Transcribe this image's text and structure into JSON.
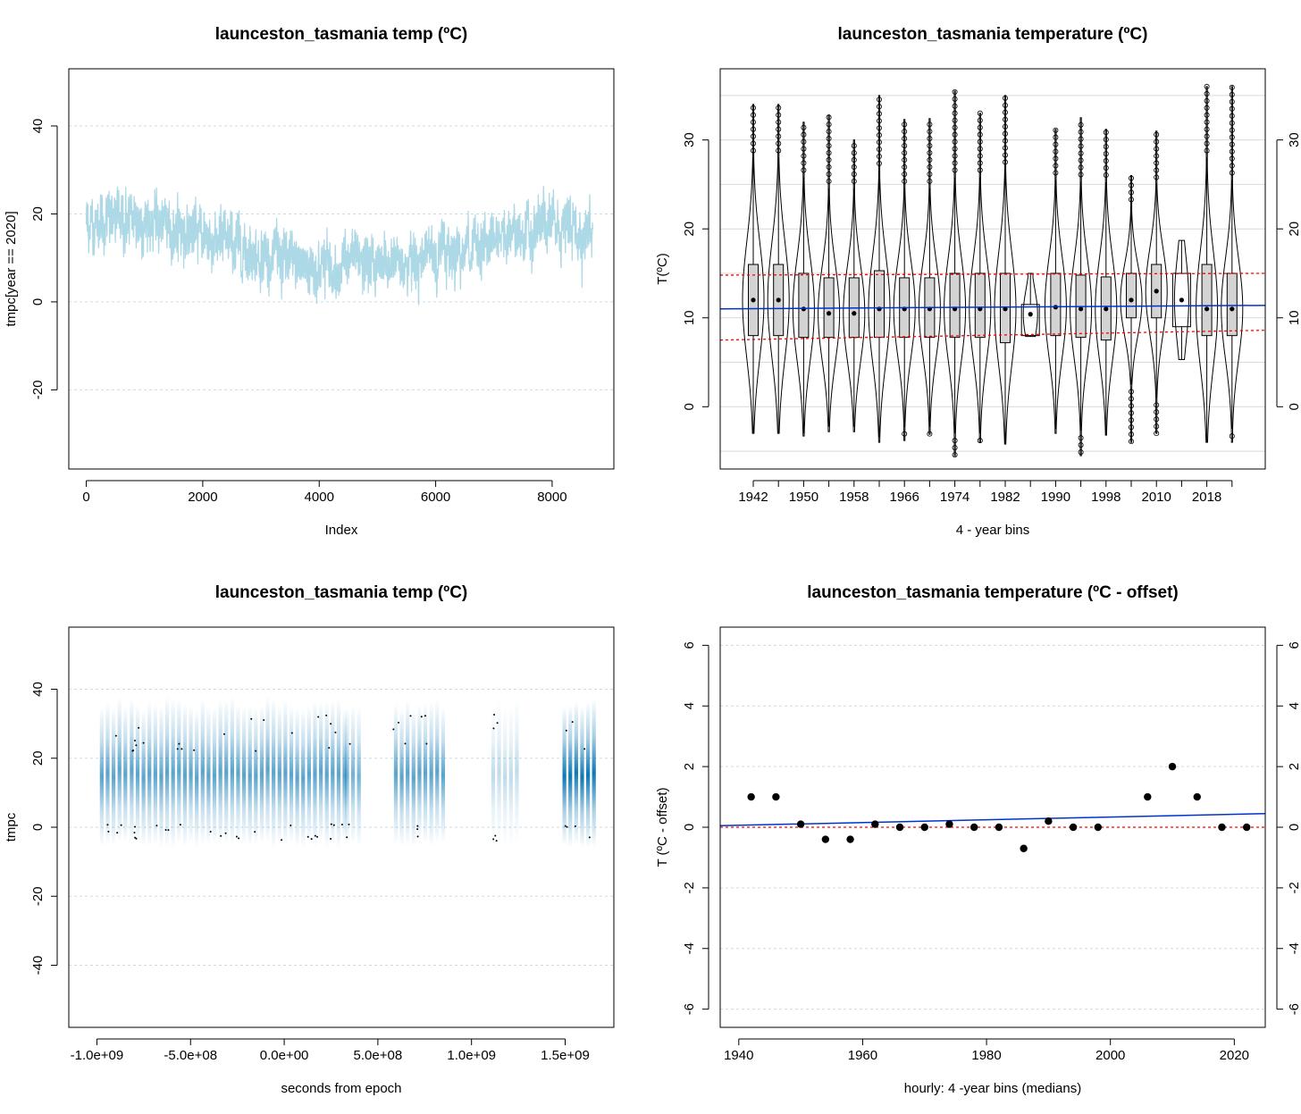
{
  "chart_data": [
    {
      "id": "p1",
      "type": "line",
      "title": "launceston_tasmania temp (ºC)",
      "xlabel": "Index",
      "ylabel": "tmpc[year == 2020]",
      "xlim": [
        -300,
        9060
      ],
      "ylim": [
        -38,
        53
      ],
      "x_ticks": [
        0,
        2000,
        4000,
        6000,
        8000
      ],
      "x_tick_labels": [
        "0",
        "2000",
        "4000",
        "6000",
        "8000"
      ],
      "y_ticks": [
        -20,
        0,
        20,
        40
      ],
      "y_tick_labels": [
        "-20",
        "0",
        "20",
        "40"
      ],
      "grid_y": [
        -20,
        0,
        20,
        40
      ],
      "color": "#add8e6",
      "n_points": 8700,
      "seasonal_profile": {
        "x": [
          0,
          1000,
          2000,
          3000,
          3800,
          4500,
          5200,
          6000,
          7000,
          8000,
          8700
        ],
        "mean": [
          18,
          18.5,
          15,
          11,
          8,
          8.5,
          8,
          11,
          14,
          17,
          16
        ]
      }
    },
    {
      "id": "p2",
      "type": "violin+box",
      "title": "launceston_tasmania temperature (ºC)",
      "xlabel": "4 - year bins",
      "ylabel": "T(ºC)",
      "ylim": [
        -7,
        38
      ],
      "y_ticks": [
        0,
        10,
        20,
        30
      ],
      "y_tick_labels": [
        "0",
        "10",
        "20",
        "30"
      ],
      "grid_y": [
        -5,
        0,
        5,
        10,
        15,
        20,
        25,
        30,
        35
      ],
      "x_tick_labels": [
        "1942",
        "1950",
        "1958",
        "1966",
        "1974",
        "1982",
        "1990",
        "1998",
        "2010",
        "2018"
      ],
      "bins": [
        {
          "year": 1942,
          "min": -3,
          "q1": 8,
          "median": 12,
          "q3": 16,
          "max": 34,
          "n": "full"
        },
        {
          "year": 1946,
          "min": -3,
          "q1": 8,
          "median": 12,
          "q3": 16,
          "max": 34,
          "n": "full"
        },
        {
          "year": 1950,
          "min": -3.3,
          "q1": 7.8,
          "median": 11,
          "q3": 15,
          "max": 32,
          "n": "full"
        },
        {
          "year": 1954,
          "min": -2.8,
          "q1": 7.8,
          "median": 10.5,
          "q3": 14.5,
          "max": 32.8,
          "n": "full"
        },
        {
          "year": 1958,
          "min": -2.8,
          "q1": 7.8,
          "median": 10.5,
          "q3": 14.5,
          "max": 30,
          "n": "full"
        },
        {
          "year": 1962,
          "min": -4,
          "q1": 7.8,
          "median": 11,
          "q3": 15.3,
          "max": 35,
          "n": "full"
        },
        {
          "year": 1966,
          "min": -3.8,
          "q1": 7.8,
          "median": 11,
          "q3": 14.5,
          "max": 32.3,
          "n": "full"
        },
        {
          "year": 1970,
          "min": -3.1,
          "q1": 7.8,
          "median": 11,
          "q3": 14.5,
          "max": 32.4,
          "n": "full"
        },
        {
          "year": 1974,
          "min": -5.5,
          "q1": 7.8,
          "median": 11,
          "q3": 15,
          "max": 35.5,
          "n": "full"
        },
        {
          "year": 1978,
          "min": -4,
          "q1": 7.8,
          "median": 11,
          "q3": 15,
          "max": 33,
          "n": "full"
        },
        {
          "year": 1982,
          "min": -4.2,
          "q1": 7.2,
          "median": 11,
          "q3": 15,
          "max": 35,
          "n": "full"
        },
        {
          "year": 1986,
          "min": 7.9,
          "q1": 8,
          "median": 10.4,
          "q3": 11.5,
          "max": 15,
          "n": "small"
        },
        {
          "year": 1990,
          "min": -3,
          "q1": 8,
          "median": 11.2,
          "q3": 15,
          "max": 31.2,
          "n": "full"
        },
        {
          "year": 1994,
          "min": -5.5,
          "q1": 7.8,
          "median": 11,
          "q3": 14.8,
          "max": 32.5,
          "n": "full"
        },
        {
          "year": 1998,
          "min": -3.2,
          "q1": 7.5,
          "median": 11,
          "q3": 14.6,
          "max": 31.2,
          "n": "full"
        },
        {
          "year": 2006,
          "min": -4,
          "q1": 10,
          "median": 12,
          "q3": 15,
          "max": 26,
          "n": "partial"
        },
        {
          "year": 2010,
          "min": -3,
          "q1": 10,
          "median": 13,
          "q3": 16,
          "max": 31,
          "n": "partial"
        },
        {
          "year": 2014,
          "min": 5.3,
          "q1": 9,
          "median": 12,
          "q3": 15,
          "max": 18.7,
          "n": "small"
        },
        {
          "year": 2018,
          "min": -4,
          "q1": 8,
          "median": 11,
          "q3": 16,
          "max": 36,
          "n": "full"
        },
        {
          "year": 2022,
          "min": -4,
          "q1": 8,
          "median": 11,
          "q3": 15,
          "max": 36,
          "n": "full"
        }
      ],
      "trend_line": {
        "color": "#0033cc",
        "start": 11.0,
        "end": 11.4
      },
      "quantile_lines": [
        {
          "color": "#ff0000",
          "style": "dotted",
          "start": 14.8,
          "end": 15
        },
        {
          "color": "#ff0000",
          "style": "dotted",
          "start": 7.5,
          "end": 8.6
        }
      ]
    },
    {
      "id": "p3",
      "type": "density-strip",
      "title": "launceston_tasmania temp (ºC)",
      "xlabel": "seconds from epoch",
      "ylabel": "tmpc",
      "xlim": [
        -1150000000.0,
        1760000000.0
      ],
      "ylim": [
        -58,
        58
      ],
      "x_ticks": [
        -1000000000.0,
        -500000000.0,
        0,
        500000000.0,
        1000000000.0,
        1500000000.0
      ],
      "x_tick_labels": [
        "-1.0e+09",
        "-5.0e+08",
        "0.0e+00",
        "5.0e+08",
        "1.0e+09",
        "1.5e+09"
      ],
      "y_ticks": [
        -40,
        -20,
        0,
        20,
        40
      ],
      "y_tick_labels": [
        "-40",
        "-20",
        "0",
        "20",
        "40"
      ],
      "grid_y": [
        -40,
        -20,
        0,
        20,
        40
      ],
      "color": "#0072b2",
      "segments": [
        {
          "start": -990000000.0,
          "end": -860000000.0,
          "intensity": 0.65
        },
        {
          "start": -830000000.0,
          "end": 320000000.0,
          "intensity": 0.65
        },
        {
          "start": 320000000.0,
          "end": 410000000.0,
          "intensity": 0.55
        },
        {
          "start": 580000000.0,
          "end": 840000000.0,
          "intensity": 0.65
        },
        {
          "start": 1100000000.0,
          "end": 1250000000.0,
          "intensity": 0.25
        },
        {
          "start": 1480000000.0,
          "end": 1660000000.0,
          "intensity": 0.95
        }
      ]
    },
    {
      "id": "p4",
      "type": "scatter",
      "title": "launceston_tasmania temperature (ºC - offset)",
      "xlabel": "hourly:  4 -year bins (medians)",
      "ylabel": "T (ºC - offset)",
      "xlim": [
        1937,
        2025
      ],
      "ylim": [
        -6.6,
        6.6
      ],
      "x_ticks": [
        1940,
        1960,
        1980,
        2000,
        2020
      ],
      "x_tick_labels": [
        "1940",
        "1960",
        "1980",
        "2000",
        "2020"
      ],
      "y_ticks": [
        -6,
        -4,
        -2,
        0,
        2,
        4,
        6
      ],
      "y_tick_labels": [
        "-6",
        "-4",
        "-2",
        "0",
        "2",
        "4",
        "6"
      ],
      "grid_y": [
        -6,
        -4,
        -2,
        0,
        2,
        4,
        6
      ],
      "x": [
        1942,
        1946,
        1950,
        1954,
        1958,
        1962,
        1966,
        1970,
        1974,
        1978,
        1982,
        1986,
        1990,
        1994,
        1998,
        2006,
        2010,
        2014,
        2018,
        2022
      ],
      "y": [
        1,
        1,
        0.1,
        -0.4,
        -0.4,
        0.1,
        0,
        0,
        0.1,
        0,
        0,
        -0.7,
        0.2,
        0,
        0,
        1,
        2,
        1,
        0,
        0
      ],
      "trend_line": {
        "color": "#0033cc",
        "x": [
          1937,
          2025
        ],
        "y": [
          0.05,
          0.45
        ]
      },
      "zero_line": {
        "color": "#ff0000",
        "style": "dotted",
        "y": 0
      }
    }
  ]
}
